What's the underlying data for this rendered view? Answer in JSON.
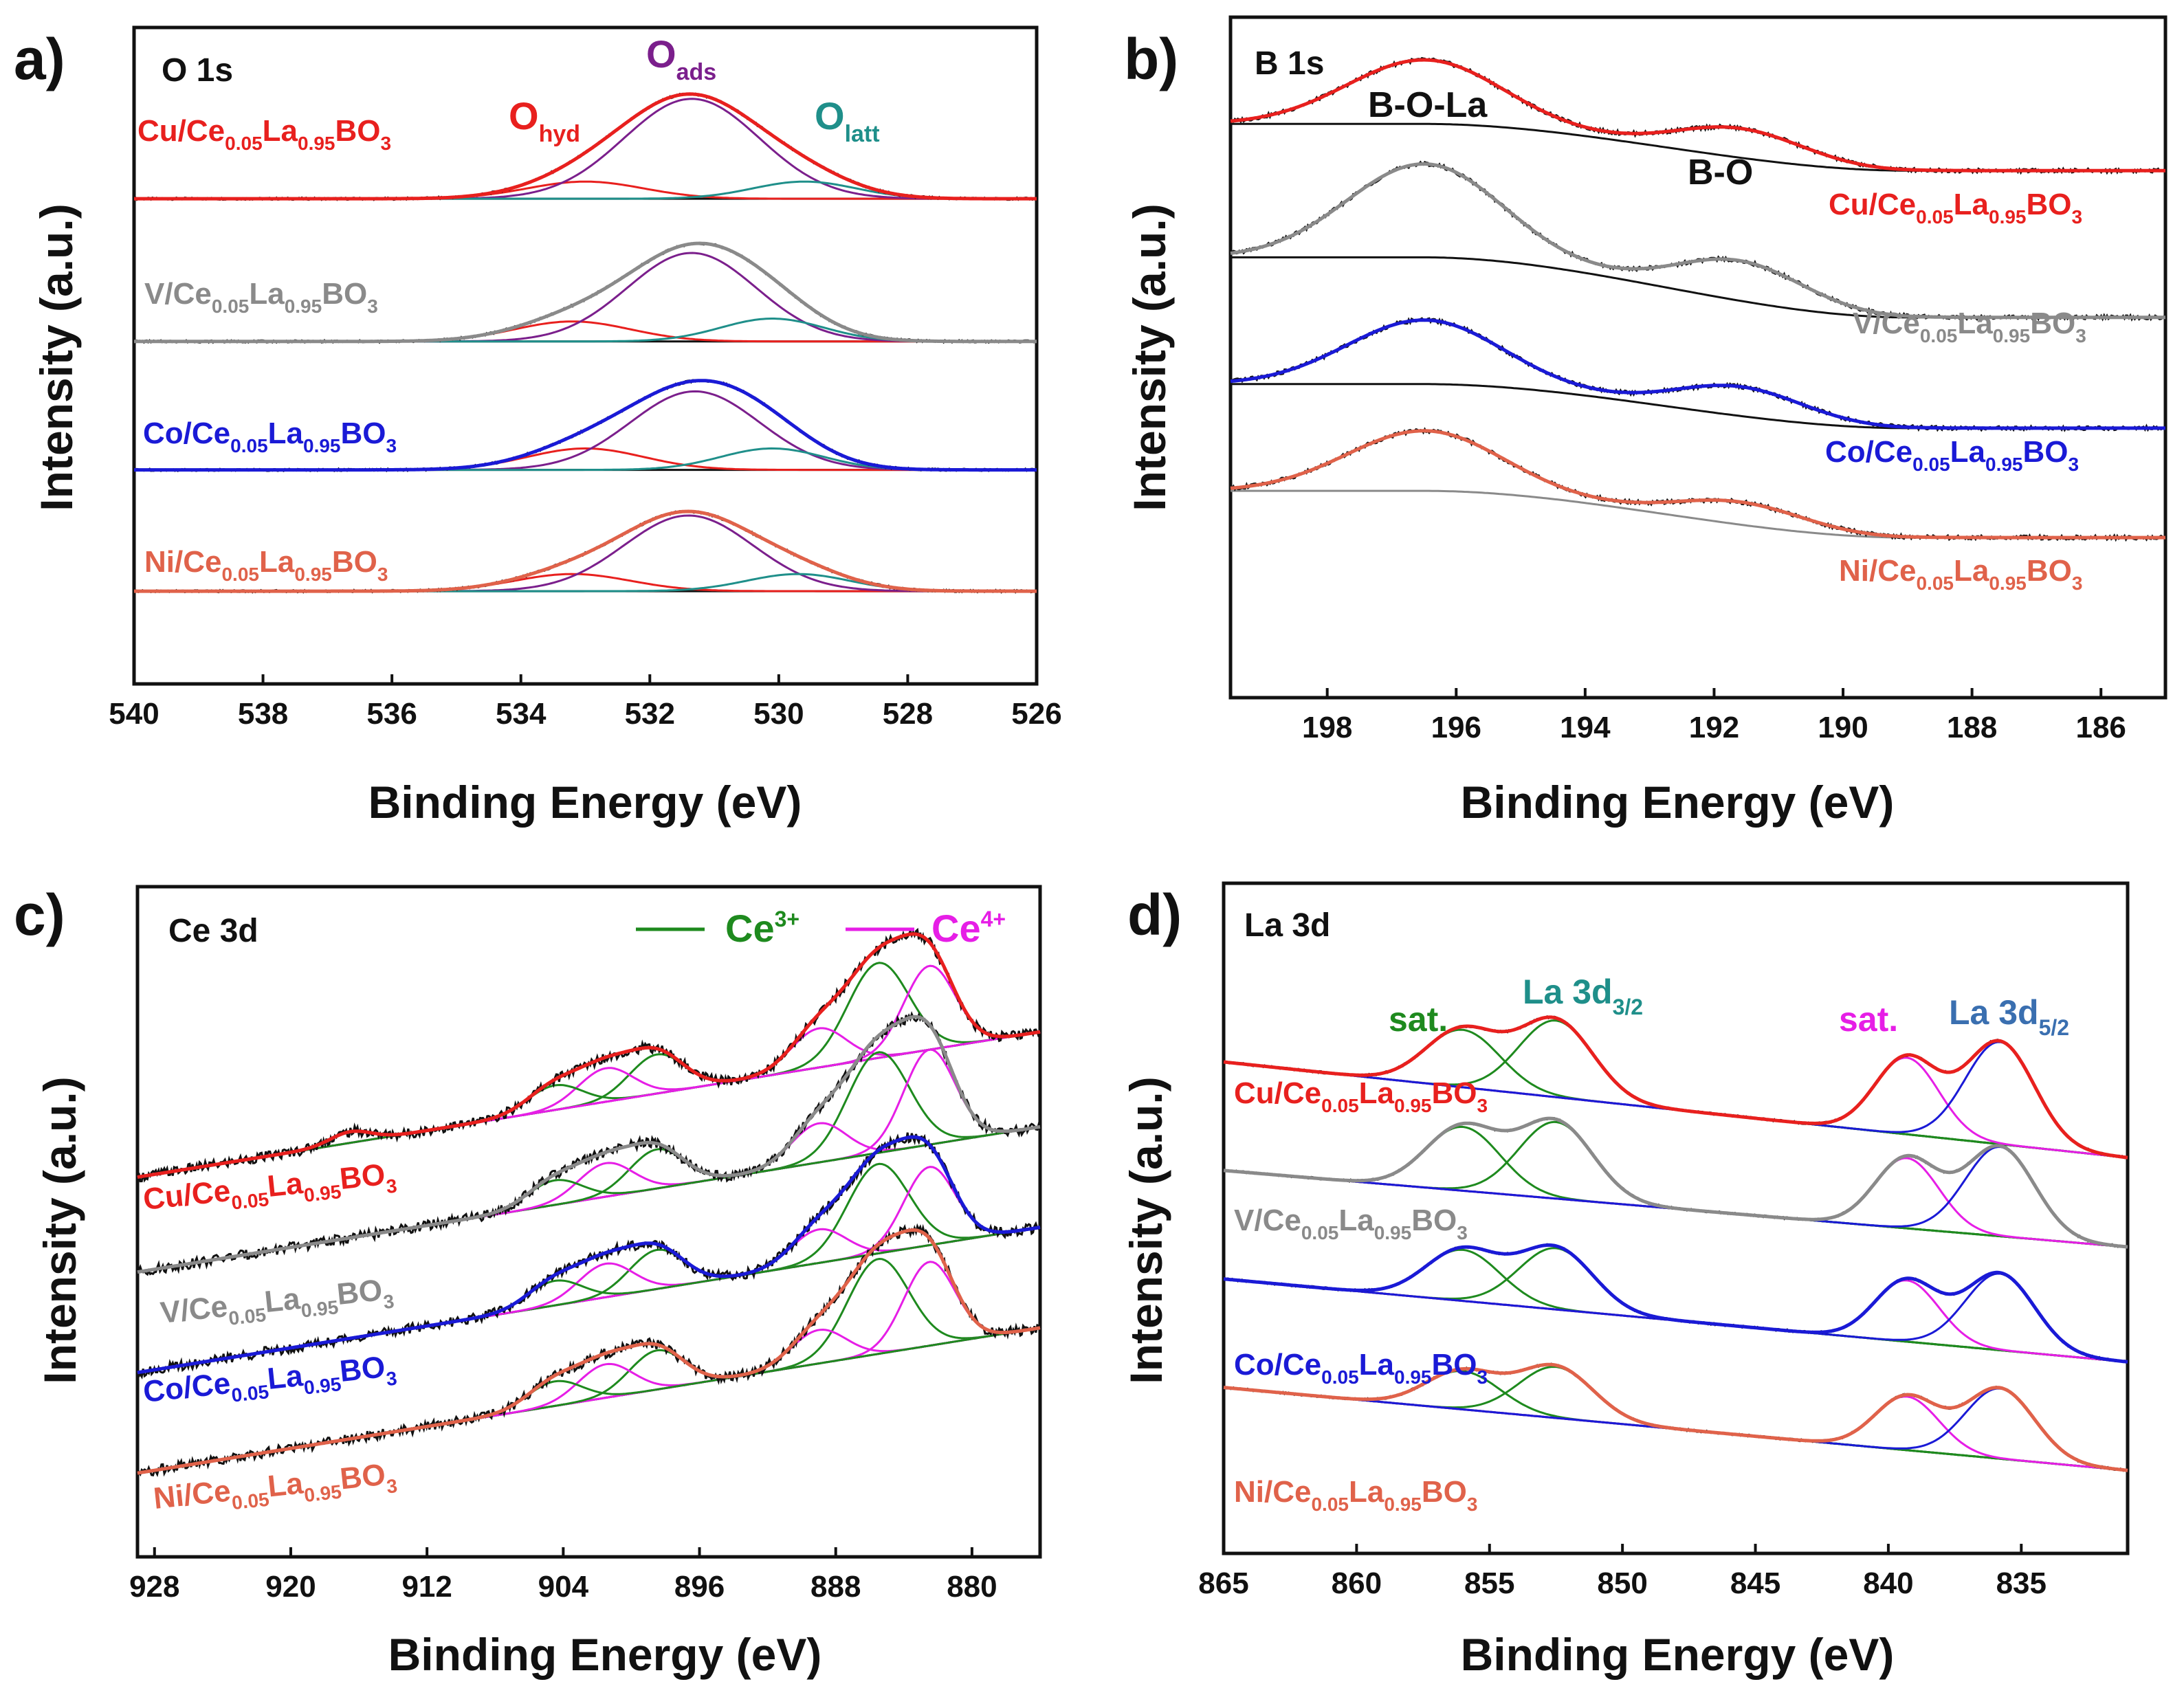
{
  "figure": {
    "xlabel": "Binding Energy (eV)",
    "ylabel": "Intensity (a.u.)"
  },
  "panels": [
    {
      "id": "a",
      "letter": "a)",
      "core": "O 1s",
      "xlim": [
        540,
        526
      ],
      "ticks": [
        "540",
        "538",
        "536",
        "534",
        "532",
        "530",
        "528",
        "526"
      ],
      "peaks": [
        {
          "main": "O",
          "sub": "hyd",
          "color": "#e8201e"
        },
        {
          "main": "O",
          "sub": "ads",
          "color": "#7b1f8c"
        },
        {
          "main": "O",
          "sub": "latt",
          "color": "#1f8f8a"
        }
      ],
      "samples": [
        {
          "metal": "Cu",
          "ce": "0.05",
          "la": "0.95",
          "o": "3",
          "color": "#e8201e"
        },
        {
          "metal": "V",
          "ce": "0.05",
          "la": "0.95",
          "o": "3",
          "color": "#8a8a8a"
        },
        {
          "metal": "Co",
          "ce": "0.05",
          "la": "0.95",
          "o": "3",
          "color": "#1a1ad6"
        },
        {
          "metal": "Ni",
          "ce": "0.05",
          "la": "0.95",
          "o": "3",
          "color": "#e0624a"
        }
      ]
    },
    {
      "id": "b",
      "letter": "b)",
      "core": "B 1s",
      "xlim": [
        199.5,
        185
      ],
      "ticks": [
        "198",
        "196",
        "194",
        "192",
        "190",
        "188",
        "186"
      ],
      "peaks": [
        {
          "main": "B-O-La",
          "sub": "",
          "color": "#111111"
        },
        {
          "main": "B-O",
          "sub": "",
          "color": "#111111"
        }
      ],
      "samples": [
        {
          "metal": "Cu",
          "ce": "0.05",
          "la": "0.95",
          "o": "3",
          "color": "#e8201e"
        },
        {
          "metal": "V",
          "ce": "0.05",
          "la": "0.95",
          "o": "3",
          "color": "#8a8a8a"
        },
        {
          "metal": "Co",
          "ce": "0.05",
          "la": "0.95",
          "o": "3",
          "color": "#1a1ad6"
        },
        {
          "metal": "Ni",
          "ce": "0.05",
          "la": "0.95",
          "o": "3",
          "color": "#e0624a"
        }
      ]
    },
    {
      "id": "c",
      "letter": "c)",
      "core": "Ce 3d",
      "xlim": [
        929,
        876
      ],
      "ticks": [
        "928",
        "920",
        "912",
        "904",
        "896",
        "888",
        "880"
      ],
      "legend": [
        {
          "main": "Ce",
          "sup": "3+",
          "color": "#1e8a1e"
        },
        {
          "main": "Ce",
          "sup": "4+",
          "color": "#e61ee6"
        }
      ],
      "samples": [
        {
          "metal": "Cu",
          "ce": "0.05",
          "la": "0.95",
          "o": "3",
          "color": "#e8201e"
        },
        {
          "metal": "V",
          "ce": "0.05",
          "la": "0.95",
          "o": "3",
          "color": "#8a8a8a"
        },
        {
          "metal": "Co",
          "ce": "0.05",
          "la": "0.95",
          "o": "3",
          "color": "#1a1ad6"
        },
        {
          "metal": "Ni",
          "ce": "0.05",
          "la": "0.95",
          "o": "3",
          "color": "#e0624a"
        }
      ]
    },
    {
      "id": "d",
      "letter": "d)",
      "core": "La 3d",
      "xlim": [
        865,
        831
      ],
      "ticks": [
        "865",
        "860",
        "855",
        "850",
        "845",
        "840",
        "835"
      ],
      "peaks": [
        {
          "main": "sat.",
          "sub": "",
          "color": "#1e8a1e"
        },
        {
          "main": "La 3d",
          "sub": "3/2",
          "color": "#1f8f8a"
        },
        {
          "main": "sat.",
          "sub": "",
          "color": "#e61ee6"
        },
        {
          "main": "La 3d",
          "sub": "5/2",
          "color": "#3a6fb0"
        }
      ],
      "samples": [
        {
          "metal": "Cu",
          "ce": "0.05",
          "la": "0.95",
          "o": "3",
          "color": "#e8201e"
        },
        {
          "metal": "V",
          "ce": "0.05",
          "la": "0.95",
          "o": "3",
          "color": "#8a8a8a"
        },
        {
          "metal": "Co",
          "ce": "0.05",
          "la": "0.95",
          "o": "3",
          "color": "#1a1ad6"
        },
        {
          "metal": "Ni",
          "ce": "0.05",
          "la": "0.95",
          "o": "3",
          "color": "#e0624a"
        }
      ]
    }
  ],
  "chart_data": [
    {
      "type": "line",
      "title": "O 1s",
      "xlabel": "Binding Energy (eV)",
      "ylabel": "Intensity (a.u.)",
      "xlim": [
        540,
        526
      ],
      "x_reversed": true,
      "series": [
        {
          "name": "Cu/Ce0.05La0.95BO3",
          "baseline": 3.0,
          "components": [
            {
              "name": "O_hyd",
              "center": 533.0,
              "height": 0.12,
              "sigma": 0.9
            },
            {
              "name": "O_ads",
              "center": 531.35,
              "height": 0.7,
              "sigma": 1.05
            },
            {
              "name": "O_latt",
              "center": 529.6,
              "height": 0.12,
              "sigma": 0.8
            }
          ]
        },
        {
          "name": "V/Ce0.05La0.95BO3",
          "baseline": 2.0,
          "components": [
            {
              "name": "O_hyd",
              "center": 533.2,
              "height": 0.14,
              "sigma": 0.9
            },
            {
              "name": "O_ads",
              "center": 531.35,
              "height": 0.62,
              "sigma": 1.0
            },
            {
              "name": "O_latt",
              "center": 530.1,
              "height": 0.16,
              "sigma": 0.8
            }
          ]
        },
        {
          "name": "Co/Ce0.05La0.95BO3",
          "baseline": 1.1,
          "components": [
            {
              "name": "O_hyd",
              "center": 533.0,
              "height": 0.15,
              "sigma": 0.9
            },
            {
              "name": "O_ads",
              "center": 531.3,
              "height": 0.55,
              "sigma": 1.0
            },
            {
              "name": "O_latt",
              "center": 530.1,
              "height": 0.15,
              "sigma": 0.8
            }
          ]
        },
        {
          "name": "Ni/Ce0.05La0.95BO3",
          "baseline": 0.25,
          "components": [
            {
              "name": "O_hyd",
              "center": 533.2,
              "height": 0.12,
              "sigma": 0.9
            },
            {
              "name": "O_ads",
              "center": 531.4,
              "height": 0.53,
              "sigma": 1.0
            },
            {
              "name": "O_latt",
              "center": 529.7,
              "height": 0.12,
              "sigma": 0.8
            }
          ]
        }
      ]
    },
    {
      "type": "line",
      "title": "B 1s",
      "xlabel": "Binding Energy (eV)",
      "ylabel": "Intensity (a.u.)",
      "xlim": [
        199.5,
        185
      ],
      "x_reversed": true,
      "series": [
        {
          "name": "Cu/Ce0.05La0.95BO3",
          "baseline_left": 3.2,
          "baseline_right": 2.85,
          "components": [
            {
              "name": "B-O-La",
              "center": 196.5,
              "height": 0.48,
              "sigma": 1.2
            },
            {
              "name": "B-O",
              "center": 191.6,
              "height": 0.22,
              "sigma": 1.0
            }
          ]
        },
        {
          "name": "V/Ce0.05La0.95BO3",
          "baseline_left": 2.2,
          "baseline_right": 1.75,
          "components": [
            {
              "name": "B-O-La",
              "center": 196.5,
              "height": 0.7,
              "sigma": 1.2
            },
            {
              "name": "B-O",
              "center": 191.6,
              "height": 0.3,
              "sigma": 1.0
            }
          ]
        },
        {
          "name": "Co/Ce0.05La0.95BO3",
          "baseline_left": 1.25,
          "baseline_right": 0.92,
          "components": [
            {
              "name": "B-O-La",
              "center": 196.5,
              "height": 0.48,
              "sigma": 1.2
            },
            {
              "name": "B-O",
              "center": 191.6,
              "height": 0.22,
              "sigma": 1.0
            }
          ]
        },
        {
          "name": "Ni/Ce0.05La0.95BO3",
          "baseline_left": 0.45,
          "baseline_right": 0.1,
          "components": [
            {
              "name": "B-O-La",
              "center": 196.5,
              "height": 0.45,
              "sigma": 1.2
            },
            {
              "name": "B-O",
              "center": 191.6,
              "height": 0.17,
              "sigma": 1.0
            }
          ]
        }
      ]
    },
    {
      "type": "line",
      "title": "Ce 3d",
      "xlabel": "Binding Energy (eV)",
      "ylabel": "Intensity (a.u.)",
      "xlim": [
        929,
        876
      ],
      "x_reversed": true,
      "series": [
        {
          "name": "Cu/Ce0.05La0.95BO3",
          "baseline_left": 3.0,
          "baseline_right": 4.3,
          "components": [
            {
              "name": "Ce3+",
              "center": 885.5,
              "height": 0.85,
              "sigma": 1.8
            },
            {
              "name": "Ce4+",
              "center": 882.5,
              "height": 0.75,
              "sigma": 1.5
            },
            {
              "name": "Ce4+",
              "center": 889.0,
              "height": 0.35,
              "sigma": 1.6
            },
            {
              "name": "Ce3+",
              "center": 898.5,
              "height": 0.35,
              "sigma": 1.6
            },
            {
              "name": "Ce4+",
              "center": 901.5,
              "height": 0.3,
              "sigma": 1.6
            },
            {
              "name": "Ce3+",
              "center": 904.5,
              "height": 0.22,
              "sigma": 1.6
            },
            {
              "name": "Ce4+",
              "center": 916.5,
              "height": 0.1,
              "sigma": 1.2
            }
          ]
        },
        {
          "name": "V/Ce0.05La0.95BO3",
          "baseline_left": 2.15,
          "baseline_right": 3.45,
          "components": [
            {
              "name": "Ce3+",
              "center": 885.5,
              "height": 0.9,
              "sigma": 1.8
            },
            {
              "name": "Ce4+",
              "center": 882.5,
              "height": 0.85,
              "sigma": 1.5
            },
            {
              "name": "Ce4+",
              "center": 889.0,
              "height": 0.35,
              "sigma": 1.6
            },
            {
              "name": "Ce3+",
              "center": 898.5,
              "height": 0.35,
              "sigma": 1.6
            },
            {
              "name": "Ce4+",
              "center": 901.5,
              "height": 0.3,
              "sigma": 1.6
            },
            {
              "name": "Ce3+",
              "center": 904.5,
              "height": 0.22,
              "sigma": 1.6
            }
          ]
        },
        {
          "name": "Co/Ce0.05La0.95BO3",
          "baseline_left": 1.25,
          "baseline_right": 2.55,
          "components": [
            {
              "name": "Ce3+",
              "center": 885.5,
              "height": 0.8,
              "sigma": 1.8
            },
            {
              "name": "Ce4+",
              "center": 882.5,
              "height": 0.7,
              "sigma": 1.5
            },
            {
              "name": "Ce4+",
              "center": 889.0,
              "height": 0.3,
              "sigma": 1.6
            },
            {
              "name": "Ce3+",
              "center": 898.5,
              "height": 0.35,
              "sigma": 1.6
            },
            {
              "name": "Ce4+",
              "center": 901.5,
              "height": 0.3,
              "sigma": 1.6
            },
            {
              "name": "Ce3+",
              "center": 904.5,
              "height": 0.22,
              "sigma": 1.6
            }
          ]
        },
        {
          "name": "Ni/Ce0.05La0.95BO3",
          "baseline_left": 0.35,
          "baseline_right": 1.65,
          "components": [
            {
              "name": "Ce3+",
              "center": 885.5,
              "height": 0.85,
              "sigma": 1.8
            },
            {
              "name": "Ce4+",
              "center": 882.5,
              "height": 0.75,
              "sigma": 1.5
            },
            {
              "name": "Ce4+",
              "center": 889.0,
              "height": 0.3,
              "sigma": 1.6
            },
            {
              "name": "Ce3+",
              "center": 898.5,
              "height": 0.35,
              "sigma": 1.6
            },
            {
              "name": "Ce4+",
              "center": 901.5,
              "height": 0.3,
              "sigma": 1.6
            },
            {
              "name": "Ce3+",
              "center": 904.5,
              "height": 0.22,
              "sigma": 1.6
            }
          ]
        }
      ]
    },
    {
      "type": "line",
      "title": "La 3d",
      "xlabel": "Binding Energy (eV)",
      "ylabel": "Intensity (a.u.)",
      "xlim": [
        865,
        831
      ],
      "x_reversed": true,
      "series": [
        {
          "name": "Cu/Ce0.05La0.95BO3",
          "baseline_left": 3.3,
          "baseline_right": 2.55,
          "components": [
            {
              "name": "sat.",
              "center": 856.0,
              "height": 0.45,
              "sigma": 1.4
            },
            {
              "name": "La 3d3/2",
              "center": 852.5,
              "height": 0.6,
              "sigma": 1.4
            },
            {
              "name": "sat.",
              "center": 839.3,
              "height": 0.6,
              "sigma": 1.2
            },
            {
              "name": "La 3d5/2",
              "center": 835.8,
              "height": 0.8,
              "sigma": 1.3
            }
          ]
        },
        {
          "name": "V/Ce0.05La0.95BO3",
          "baseline_left": 2.45,
          "baseline_right": 1.85,
          "components": [
            {
              "name": "sat.",
              "center": 856.0,
              "height": 0.5,
              "sigma": 1.4
            },
            {
              "name": "La 3d3/2",
              "center": 852.5,
              "height": 0.6,
              "sigma": 1.4
            },
            {
              "name": "sat.",
              "center": 839.3,
              "height": 0.55,
              "sigma": 1.2
            },
            {
              "name": "La 3d5/2",
              "center": 835.8,
              "height": 0.7,
              "sigma": 1.3
            }
          ]
        },
        {
          "name": "Co/Ce0.05La0.95BO3",
          "baseline_left": 1.6,
          "baseline_right": 0.95,
          "components": [
            {
              "name": "sat.",
              "center": 856.0,
              "height": 0.4,
              "sigma": 1.4
            },
            {
              "name": "La 3d3/2",
              "center": 852.5,
              "height": 0.48,
              "sigma": 1.4
            },
            {
              "name": "sat.",
              "center": 839.3,
              "height": 0.48,
              "sigma": 1.2
            },
            {
              "name": "La 3d5/2",
              "center": 835.8,
              "height": 0.6,
              "sigma": 1.3
            }
          ]
        },
        {
          "name": "Ni/Ce0.05La0.95BO3",
          "baseline_left": 0.75,
          "baseline_right": 0.1,
          "components": [
            {
              "name": "sat.",
              "center": 856.0,
              "height": 0.3,
              "sigma": 1.4
            },
            {
              "name": "La 3d3/2",
              "center": 852.5,
              "height": 0.4,
              "sigma": 1.4
            },
            {
              "name": "sat.",
              "center": 839.3,
              "height": 0.42,
              "sigma": 1.2
            },
            {
              "name": "La 3d5/2",
              "center": 835.8,
              "height": 0.55,
              "sigma": 1.3
            }
          ]
        }
      ]
    }
  ]
}
